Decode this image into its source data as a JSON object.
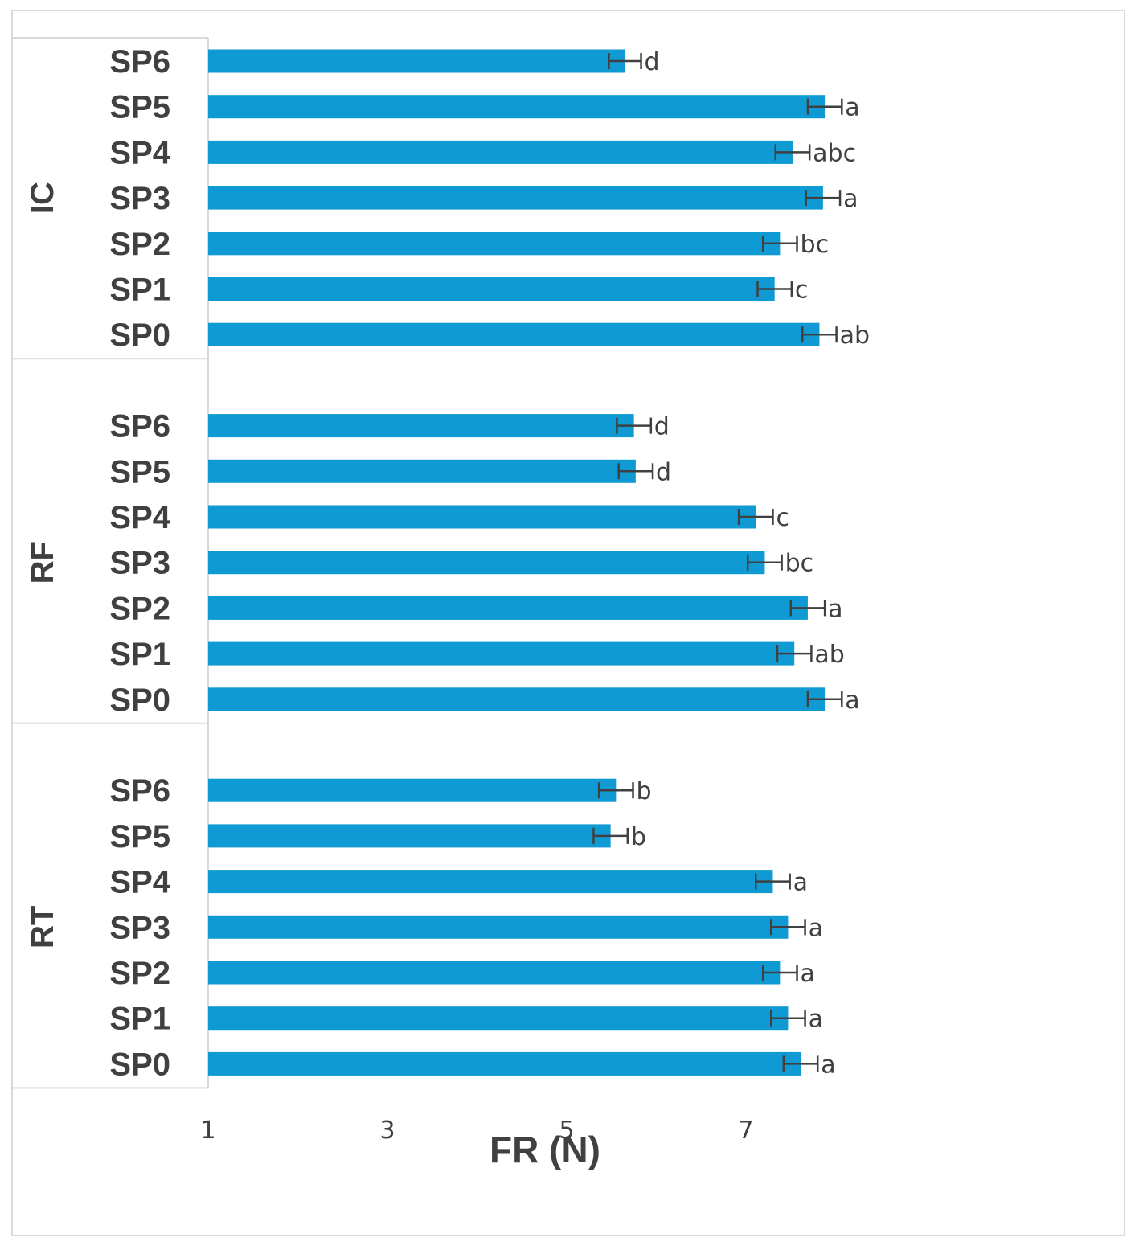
{
  "chart_data": {
    "type": "bar",
    "orientation": "horizontal",
    "xlabel": "FR (N)",
    "ylabel": "",
    "xlim": [
      1,
      8.8
    ],
    "xticks": [
      "1",
      "3",
      "5",
      "7"
    ],
    "xtick_values": [
      1,
      3,
      5,
      7
    ],
    "bar_color": "#0f9ad4",
    "groups": [
      {
        "name": "IC",
        "categories": [
          "SP6",
          "SP5",
          "SP4",
          "SP3",
          "SP2",
          "SP1",
          "SP0"
        ],
        "values": [
          5.65,
          7.88,
          7.52,
          7.86,
          7.38,
          7.32,
          7.82
        ],
        "errors": [
          0.18,
          0.19,
          0.19,
          0.19,
          0.19,
          0.19,
          0.19
        ],
        "letters": [
          "d",
          "a",
          "abc",
          "a",
          "bc",
          "c",
          "ab"
        ]
      },
      {
        "name": "RF",
        "categories": [
          "SP6",
          "SP5",
          "SP4",
          "SP3",
          "SP2",
          "SP1",
          "SP0"
        ],
        "values": [
          5.75,
          5.77,
          7.11,
          7.21,
          7.69,
          7.54,
          7.88
        ],
        "errors": [
          0.19,
          0.19,
          0.19,
          0.19,
          0.19,
          0.19,
          0.19
        ],
        "letters": [
          "d",
          "d",
          "c",
          "bc",
          "a",
          "ab",
          "a"
        ]
      },
      {
        "name": "RT",
        "categories": [
          "SP6",
          "SP5",
          "SP4",
          "SP3",
          "SP2",
          "SP1",
          "SP0"
        ],
        "values": [
          5.55,
          5.49,
          7.3,
          7.47,
          7.38,
          7.47,
          7.61
        ],
        "errors": [
          0.19,
          0.19,
          0.19,
          0.19,
          0.19,
          0.19,
          0.19
        ],
        "letters": [
          "b",
          "b",
          "a",
          "a",
          "a",
          "a",
          "a"
        ]
      }
    ]
  }
}
